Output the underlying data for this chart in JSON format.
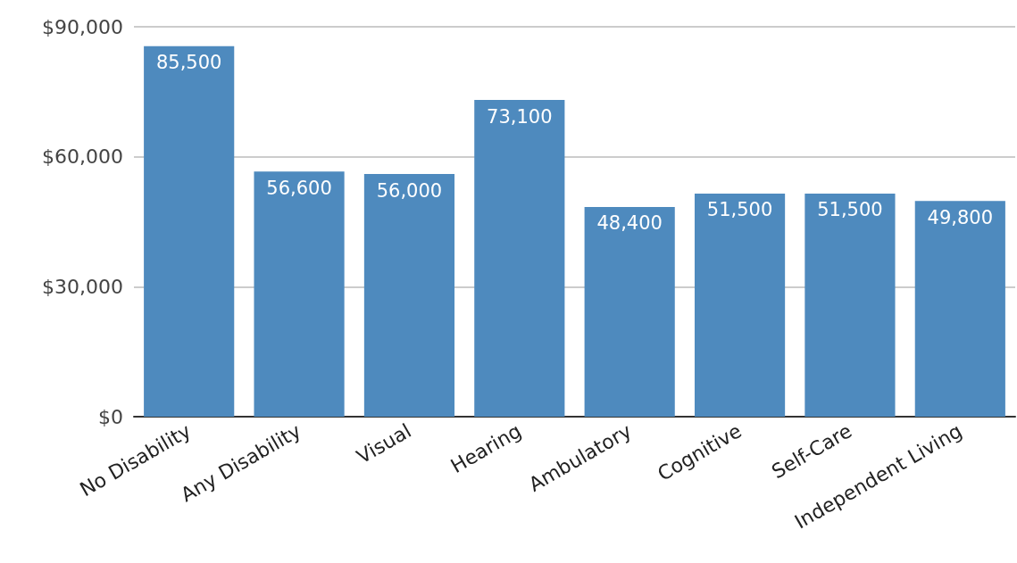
{
  "chart_data": {
    "type": "bar",
    "categories": [
      "No Disability",
      "Any Disability",
      "Visual",
      "Hearing",
      "Ambulatory",
      "Cognitive",
      "Self-Care",
      "Independent Living"
    ],
    "values": [
      85500,
      56600,
      56000,
      73100,
      48400,
      51500,
      51500,
      49800
    ],
    "color": "#4e8abe",
    "ylim": [
      0,
      90000
    ],
    "yticks": [
      {
        "value": 0,
        "label": "$0"
      },
      {
        "value": 30000,
        "label": "$30,000"
      },
      {
        "value": 60000,
        "label": "$60,000"
      },
      {
        "value": 90000,
        "label": "$90,000"
      }
    ],
    "value_labels": [
      "85,500",
      "56,600",
      "56,000",
      "73,100",
      "48,400",
      "51,500",
      "51,500",
      "49,800"
    ],
    "grid": "y"
  }
}
